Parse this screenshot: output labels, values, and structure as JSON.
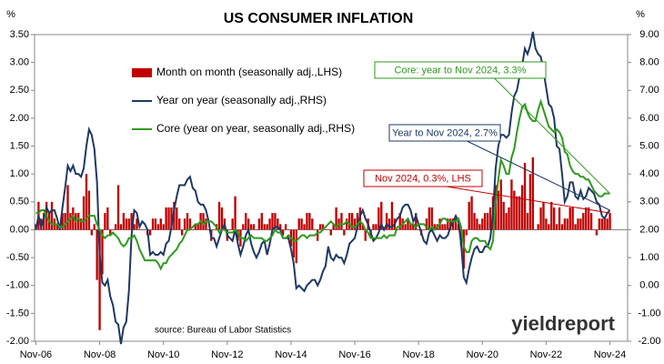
{
  "chart_data": {
    "type": "bar",
    "title": "US CONSUMER INFLATION",
    "y_unit": "%",
    "y2_unit": "%",
    "source": "source: Bureau of Labor Statistics",
    "logo": "yieldreport",
    "categories": [
      "Nov-06",
      null,
      null,
      null,
      null,
      null,
      null,
      null,
      null,
      null,
      null,
      null,
      null,
      null,
      null,
      null,
      null,
      null,
      null,
      null,
      null,
      null,
      null,
      null,
      "Nov-08",
      null,
      null,
      null,
      null,
      null,
      null,
      null,
      null,
      null,
      null,
      null,
      null,
      null,
      null,
      null,
      null,
      null,
      null,
      null,
      null,
      null,
      null,
      null,
      "Nov-10",
      null,
      null,
      null,
      null,
      null,
      null,
      null,
      null,
      null,
      null,
      null,
      null,
      null,
      null,
      null,
      null,
      null,
      null,
      null,
      null,
      null,
      null,
      null,
      "Nov-12",
      null,
      null,
      null,
      null,
      null,
      null,
      null,
      null,
      null,
      null,
      null,
      null,
      null,
      null,
      null,
      null,
      null,
      null,
      null,
      null,
      null,
      null,
      null,
      "Nov-14",
      null,
      null,
      null,
      null,
      null,
      null,
      null,
      null,
      null,
      null,
      null,
      null,
      null,
      null,
      null,
      null,
      null,
      null,
      null,
      null,
      null,
      null,
      null,
      "Nov-16",
      null,
      null,
      null,
      null,
      null,
      null,
      null,
      null,
      null,
      null,
      null,
      null,
      null,
      null,
      null,
      null,
      null,
      null,
      null,
      null,
      null,
      null,
      null,
      "Nov-18",
      null,
      null,
      null,
      null,
      null,
      null,
      null,
      null,
      null,
      null,
      null,
      null,
      null,
      null,
      null,
      null,
      null,
      null,
      null,
      null,
      null,
      null,
      null,
      "Nov-20",
      null,
      null,
      null,
      null,
      null,
      null,
      null,
      null,
      null,
      null,
      null,
      null,
      null,
      null,
      null,
      null,
      null,
      null,
      null,
      null,
      null,
      null,
      null,
      "Nov-22",
      null,
      null,
      null,
      null,
      null,
      null,
      null,
      null,
      null,
      null,
      null,
      null,
      null,
      null,
      null,
      null,
      null,
      null,
      null,
      null,
      null,
      null,
      null,
      "Nov-24"
    ],
    "series": [
      {
        "name": "Month on month (seasonally adj.,LHS)",
        "type": "bar",
        "color": "#c00000",
        "values": [
          0.1,
          0.5,
          0.2,
          0.3,
          0.5,
          0.3,
          0.5,
          0.2,
          0.1,
          0.0,
          0.3,
          0.3,
          0.8,
          0.3,
          0.4,
          0.3,
          0.3,
          0.2,
          0.6,
          1.0,
          0.7,
          -0.1,
          0.1,
          -0.9,
          -1.8,
          -0.8,
          0.3,
          0.4,
          -0.1,
          0.0,
          0.1,
          0.8,
          0.1,
          0.3,
          0.2,
          0.2,
          0.3,
          0.1,
          0.2,
          0.0,
          0.0,
          0.0,
          -0.1,
          -0.1,
          0.2,
          0.2,
          0.1,
          0.2,
          0.1,
          0.4,
          0.4,
          0.4,
          0.5,
          0.4,
          0.2,
          -0.1,
          0.2,
          0.3,
          0.2,
          0.0,
          0.1,
          0.1,
          0.3,
          0.3,
          0.2,
          0.0,
          -0.2,
          0.0,
          0.1,
          0.5,
          0.4,
          0.2,
          -0.2,
          0.0,
          0.2,
          0.6,
          -0.2,
          -0.3,
          0.1,
          0.3,
          0.2,
          0.1,
          0.1,
          0.0,
          0.2,
          0.3,
          0.1,
          0.1,
          0.2,
          0.3,
          0.3,
          0.2,
          0.1,
          -0.1,
          0.1,
          0.0,
          -0.3,
          -0.5,
          -0.6,
          0.2,
          0.2,
          0.1,
          0.3,
          0.3,
          0.2,
          0.0,
          -0.2,
          0.1,
          0.1,
          0.0,
          0.0,
          -0.1,
          0.1,
          0.4,
          0.2,
          0.3,
          -0.1,
          0.2,
          0.3,
          0.3,
          0.2,
          0.3,
          0.4,
          0.1,
          -0.2,
          0.2,
          -0.1,
          0.1,
          0.1,
          0.4,
          0.5,
          0.0,
          0.3,
          0.2,
          0.5,
          0.2,
          0.0,
          0.3,
          0.2,
          0.1,
          0.2,
          0.1,
          0.1,
          0.3,
          0.0,
          -0.1,
          0.0,
          0.2,
          0.4,
          0.4,
          0.1,
          0.1,
          0.2,
          0.1,
          0.1,
          0.2,
          0.2,
          0.2,
          0.2,
          0.1,
          -0.3,
          -0.7,
          -0.1,
          0.5,
          0.6,
          0.3,
          0.2,
          0.1,
          0.2,
          0.3,
          0.3,
          0.4,
          0.6,
          0.8,
          0.7,
          0.9,
          0.5,
          0.3,
          0.4,
          0.9,
          0.7,
          0.6,
          0.6,
          0.8,
          1.2,
          0.3,
          1.0,
          1.3,
          0.0,
          0.1,
          0.4,
          0.5,
          0.2,
          0.1,
          0.5,
          0.4,
          0.1,
          0.4,
          0.1,
          0.2,
          0.2,
          0.4,
          0.4,
          0.1,
          0.2,
          0.2,
          0.3,
          0.4,
          0.4,
          0.3,
          0.0,
          -0.1,
          0.2,
          0.2,
          0.2,
          0.2,
          0.3
        ]
      },
      {
        "name": "Year on year (seasonally adj.,RHS)",
        "type": "line",
        "axis": "y2",
        "color": "#1f3864",
        "values": [
          2.0,
          2.5,
          2.1,
          2.4,
          2.8,
          2.6,
          2.7,
          2.7,
          2.4,
          2.0,
          2.8,
          3.5,
          4.3,
          4.1,
          4.3,
          4.0,
          4.0,
          3.9,
          4.2,
          5.0,
          5.6,
          5.4,
          4.9,
          3.7,
          1.1,
          0.1,
          0.0,
          0.2,
          -0.4,
          -0.7,
          -1.3,
          -1.4,
          -2.1,
          -1.5,
          -1.3,
          -0.2,
          1.8,
          2.7,
          2.6,
          2.1,
          2.3,
          2.2,
          2.0,
          1.1,
          1.2,
          1.1,
          1.1,
          1.2,
          1.1,
          1.5,
          1.6,
          2.1,
          2.7,
          3.2,
          3.6,
          3.6,
          3.6,
          3.8,
          3.9,
          3.5,
          3.4,
          3.0,
          2.9,
          2.9,
          2.7,
          2.3,
          1.7,
          1.7,
          1.4,
          1.7,
          2.0,
          2.2,
          1.8,
          1.7,
          1.6,
          2.0,
          1.5,
          1.1,
          1.4,
          1.8,
          2.0,
          1.5,
          1.2,
          1.0,
          1.2,
          1.5,
          1.6,
          1.1,
          1.5,
          2.0,
          2.1,
          2.1,
          2.0,
          1.7,
          1.7,
          1.7,
          1.3,
          0.8,
          -0.1,
          0.0,
          -0.1,
          -0.2,
          0.0,
          0.1,
          0.2,
          0.2,
          0.0,
          0.2,
          0.5,
          0.7,
          1.4,
          1.0,
          0.9,
          1.1,
          1.0,
          1.0,
          0.8,
          1.1,
          1.5,
          1.6,
          1.7,
          2.1,
          2.5,
          2.7,
          2.4,
          2.2,
          1.9,
          1.6,
          1.7,
          1.9,
          2.2,
          2.0,
          2.2,
          2.1,
          2.1,
          2.2,
          2.4,
          2.5,
          2.8,
          2.9,
          2.9,
          2.7,
          2.3,
          2.5,
          2.2,
          1.9,
          1.6,
          1.5,
          1.9,
          2.0,
          1.8,
          1.6,
          1.8,
          1.7,
          1.7,
          1.8,
          2.1,
          2.3,
          2.5,
          2.3,
          1.5,
          0.3,
          0.1,
          0.6,
          1.0,
          1.3,
          1.4,
          1.2,
          1.2,
          1.4,
          1.4,
          1.7,
          2.6,
          4.2,
          5.0,
          5.4,
          5.4,
          5.3,
          5.4,
          6.2,
          6.8,
          7.0,
          7.5,
          7.9,
          8.5,
          8.3,
          8.6,
          9.1,
          8.5,
          8.3,
          8.2,
          7.7,
          7.1,
          6.5,
          6.4,
          6.0,
          5.0,
          4.9,
          4.0,
          3.0,
          3.2,
          3.7,
          3.7,
          3.2,
          3.1,
          3.4,
          3.1,
          3.2,
          3.5,
          3.4,
          3.3,
          3.0,
          2.9,
          2.5,
          2.4,
          2.6,
          2.7
        ]
      },
      {
        "name": "Core (year on year, seasonally adj.,RHS)",
        "type": "line",
        "axis": "y2",
        "color": "#2e9a1e",
        "values": [
          2.6,
          2.6,
          2.7,
          2.7,
          2.5,
          2.3,
          2.2,
          2.2,
          2.2,
          2.1,
          2.1,
          2.2,
          2.3,
          2.4,
          2.5,
          2.3,
          2.4,
          2.3,
          2.3,
          2.4,
          2.5,
          2.5,
          2.5,
          2.2,
          2.0,
          1.8,
          1.7,
          1.8,
          1.8,
          1.9,
          1.8,
          1.7,
          1.5,
          1.4,
          1.5,
          1.7,
          1.7,
          1.8,
          1.6,
          1.3,
          1.1,
          0.9,
          0.9,
          0.9,
          0.9,
          0.9,
          0.8,
          0.6,
          0.8,
          0.8,
          1.0,
          1.1,
          1.2,
          1.3,
          1.5,
          1.6,
          1.8,
          2.0,
          2.0,
          2.1,
          2.2,
          2.2,
          2.3,
          2.2,
          2.3,
          2.3,
          2.3,
          2.2,
          2.1,
          1.9,
          2.0,
          2.0,
          1.9,
          1.9,
          1.9,
          2.0,
          1.9,
          1.7,
          1.7,
          1.6,
          1.7,
          1.8,
          1.7,
          1.7,
          1.7,
          1.7,
          1.6,
          1.6,
          1.7,
          1.8,
          2.0,
          1.9,
          1.9,
          1.7,
          1.7,
          1.8,
          1.7,
          1.6,
          1.6,
          1.7,
          1.8,
          1.8,
          1.7,
          1.8,
          1.8,
          1.8,
          1.9,
          1.9,
          2.0,
          2.1,
          2.2,
          2.3,
          2.2,
          2.1,
          2.2,
          2.2,
          2.2,
          2.3,
          2.2,
          2.1,
          2.1,
          2.2,
          2.3,
          2.2,
          2.0,
          1.9,
          1.7,
          1.7,
          1.7,
          1.7,
          1.7,
          1.8,
          1.7,
          1.8,
          1.8,
          1.8,
          2.1,
          2.1,
          2.2,
          2.3,
          2.4,
          2.2,
          2.2,
          2.1,
          2.2,
          2.2,
          2.2,
          2.1,
          2.0,
          2.1,
          2.0,
          2.1,
          2.2,
          2.4,
          2.4,
          2.3,
          2.3,
          2.3,
          2.3,
          2.4,
          2.1,
          1.4,
          1.2,
          1.2,
          1.6,
          1.7,
          1.7,
          1.6,
          1.6,
          1.6,
          1.4,
          1.3,
          1.6,
          3.0,
          3.8,
          4.5,
          4.3,
          4.0,
          4.0,
          4.6,
          4.9,
          5.5,
          6.0,
          6.4,
          6.5,
          6.2,
          6.0,
          5.9,
          5.9,
          6.3,
          6.6,
          6.3,
          6.0,
          5.7,
          5.6,
          5.5,
          5.6,
          5.5,
          5.3,
          4.8,
          4.7,
          4.3,
          4.1,
          4.0,
          4.0,
          3.9,
          3.9,
          3.8,
          3.8,
          3.6,
          3.4,
          3.3,
          3.2,
          3.2,
          3.3,
          3.3,
          3.3
        ]
      }
    ],
    "annotations": [
      {
        "text": "Core: year to Nov 2024, 3.3%",
        "series": 2,
        "color": "#2e9a1e"
      },
      {
        "text": "Year to Nov 2024, 2.7%",
        "series": 1,
        "color": "#1f3864"
      },
      {
        "text": "Nov 2024, 0.3%, LHS",
        "series": 0,
        "color": "#c00000"
      }
    ],
    "ylim": [
      -2,
      3.5
    ],
    "yticks": [
      {
        "value": -2,
        "label": "-2.00"
      },
      {
        "value": -1.5,
        "label": "-1.50"
      },
      {
        "value": -1,
        "label": "-1.00"
      },
      {
        "value": -0.5,
        "label": "-0.50"
      },
      {
        "value": 0,
        "label": "0.00"
      },
      {
        "value": 0.5,
        "label": "0.50"
      },
      {
        "value": 1,
        "label": "1.00"
      },
      {
        "value": 1.5,
        "label": "1.50"
      },
      {
        "value": 2,
        "label": "2.00"
      },
      {
        "value": 2.5,
        "label": "2.50"
      },
      {
        "value": 3,
        "label": "3.00"
      },
      {
        "value": 3.5,
        "label": "3.50"
      }
    ],
    "y2lim": [
      -2,
      9
    ],
    "y2ticks": [
      {
        "value": -2,
        "label": "-2.00"
      },
      {
        "value": -1,
        "label": "-1.00"
      },
      {
        "value": 0,
        "label": "0.00"
      },
      {
        "value": 1,
        "label": "1.00"
      },
      {
        "value": 2,
        "label": "2.00"
      },
      {
        "value": 3,
        "label": "3.00"
      },
      {
        "value": 4,
        "label": "4.00"
      },
      {
        "value": 5,
        "label": "5.00"
      },
      {
        "value": 6,
        "label": "6.00"
      },
      {
        "value": 7,
        "label": "7.00"
      },
      {
        "value": 8,
        "label": "8.00"
      },
      {
        "value": 9,
        "label": "9.00"
      }
    ],
    "grid": false
  }
}
